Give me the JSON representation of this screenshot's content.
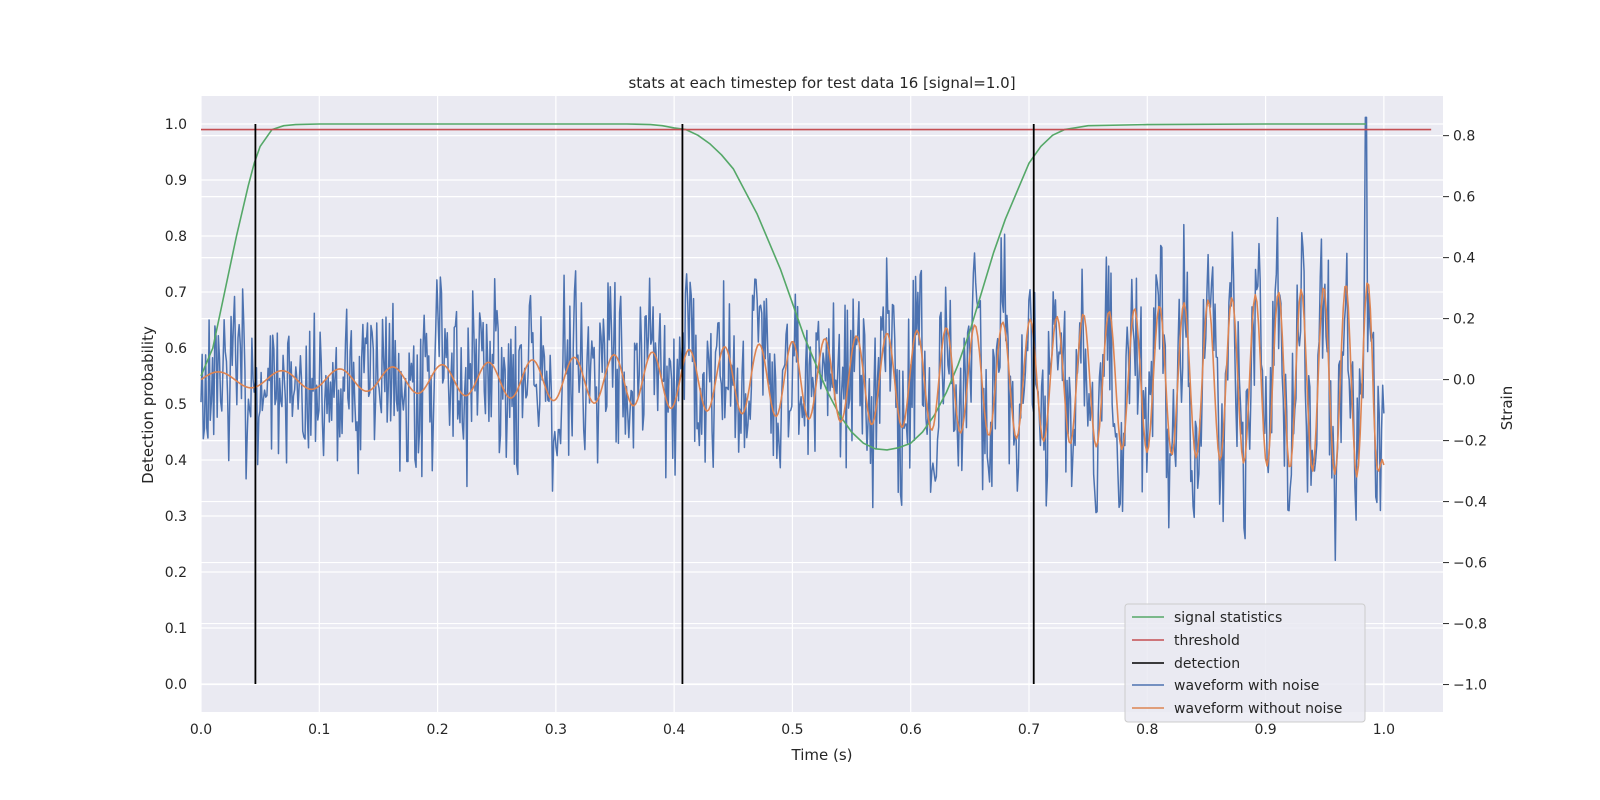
{
  "chart_data": {
    "type": "line",
    "title": "stats at each timestep for test data 16 [signal=1.0]",
    "xlabel": "Time (s)",
    "ylabel_left": "Detection probability",
    "ylabel_right": "Strain",
    "xlim": [
      0.0,
      1.05
    ],
    "ylim_left": [
      -0.05,
      1.05
    ],
    "ylim_right": [
      -1.09,
      0.93
    ],
    "x_ticks": [
      0.0,
      0.1,
      0.2,
      0.3,
      0.4,
      0.5,
      0.6,
      0.7,
      0.8,
      0.9,
      1.0
    ],
    "x_tick_labels": [
      "0.0",
      "0.1",
      "0.2",
      "0.3",
      "0.4",
      "0.5",
      "0.6",
      "0.7",
      "0.8",
      "0.9",
      "1.0"
    ],
    "y_left_ticks": [
      0.0,
      0.1,
      0.2,
      0.3,
      0.4,
      0.5,
      0.6,
      0.7,
      0.8,
      0.9,
      1.0
    ],
    "y_left_tick_labels": [
      "0.0",
      "0.1",
      "0.2",
      "0.3",
      "0.4",
      "0.5",
      "0.6",
      "0.7",
      "0.8",
      "0.9",
      "1.0"
    ],
    "y_right_ticks": [
      -1.0,
      -0.8,
      -0.6,
      -0.4,
      -0.2,
      0.0,
      0.2,
      0.4,
      0.6,
      0.8
    ],
    "y_right_tick_labels": [
      "−1.0",
      "−0.8",
      "−0.6",
      "−0.4",
      "−0.2",
      "0.0",
      "0.2",
      "0.4",
      "0.6",
      "0.8"
    ],
    "grid": true,
    "legend_position": "bottom-right",
    "series": [
      {
        "name": "signal statistics",
        "color": "#55a868",
        "axis": "left",
        "x": [
          0.0,
          0.01,
          0.02,
          0.03,
          0.04,
          0.045,
          0.05,
          0.06,
          0.07,
          0.08,
          0.1,
          0.2,
          0.3,
          0.36,
          0.38,
          0.39,
          0.4,
          0.41,
          0.42,
          0.43,
          0.44,
          0.45,
          0.46,
          0.47,
          0.48,
          0.49,
          0.5,
          0.51,
          0.52,
          0.53,
          0.54,
          0.55,
          0.56,
          0.57,
          0.58,
          0.59,
          0.6,
          0.61,
          0.62,
          0.63,
          0.64,
          0.65,
          0.66,
          0.67,
          0.68,
          0.69,
          0.7,
          0.71,
          0.72,
          0.73,
          0.75,
          0.8,
          0.9,
          0.985
        ],
        "values": [
          0.55,
          0.6,
          0.7,
          0.8,
          0.89,
          0.93,
          0.96,
          0.99,
          0.997,
          0.999,
          1.0,
          1.0,
          1.0,
          1.0,
          0.999,
          0.997,
          0.993,
          0.99,
          0.98,
          0.965,
          0.945,
          0.92,
          0.88,
          0.84,
          0.79,
          0.74,
          0.68,
          0.62,
          0.57,
          0.52,
          0.48,
          0.45,
          0.43,
          0.42,
          0.418,
          0.422,
          0.43,
          0.45,
          0.48,
          0.52,
          0.57,
          0.63,
          0.7,
          0.77,
          0.83,
          0.88,
          0.93,
          0.96,
          0.98,
          0.99,
          0.997,
          0.999,
          1.0,
          1.0
        ]
      },
      {
        "name": "threshold",
        "color": "#c44e52",
        "axis": "left",
        "x": [
          0.0,
          1.04
        ],
        "values": [
          0.99,
          0.99
        ]
      },
      {
        "name": "detection",
        "color": "#000000",
        "axis": "left",
        "kind": "vlines",
        "x": [
          0.046,
          0.407,
          0.704
        ],
        "ymin": 0.0,
        "ymax": 1.0
      },
      {
        "name": "waveform with noise",
        "color": "#4c72b0",
        "axis": "right",
        "generated": {
          "x_start": 0.0,
          "x_end": 1.0,
          "n": 1024,
          "noise_amp": 0.24,
          "seed": 16,
          "spike_at": 0.985,
          "spike_value": 0.86
        }
      },
      {
        "name": "waveform without noise",
        "color": "#dd8452",
        "axis": "right",
        "chirp": {
          "x_start": 0.0,
          "x_end": 1.0,
          "n": 700,
          "amp_start": 0.025,
          "amp_end": 0.33,
          "f_start": 17.0,
          "f_end": 55.0,
          "end_drop_at": 0.99,
          "end_value": -0.28
        }
      }
    ]
  }
}
